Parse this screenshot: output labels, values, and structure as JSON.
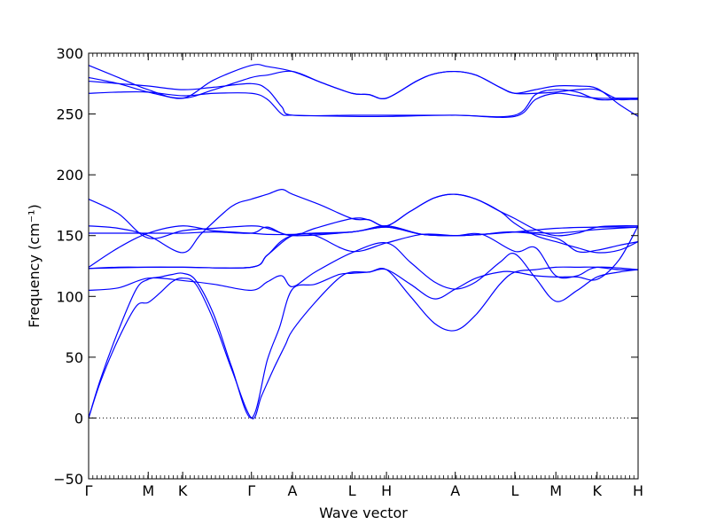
{
  "chart_data": {
    "type": "line",
    "xlabel": "Wave vector",
    "ylabel": "Frequency (cm⁻¹)",
    "ylim": [
      -50,
      300
    ],
    "y_ticks": [
      -50,
      0,
      50,
      100,
      150,
      200,
      250,
      300
    ],
    "x_ticks": [
      {
        "label": "Γ",
        "pos": 0
      },
      {
        "label": "M",
        "pos": 0.5
      },
      {
        "label": "K",
        "pos": 0.789
      },
      {
        "label": "Γ",
        "pos": 1.366
      },
      {
        "label": "A",
        "pos": 1.71
      },
      {
        "label": "L",
        "pos": 2.21
      },
      {
        "label": "H",
        "pos": 2.499
      },
      {
        "label": "A",
        "pos": 3.076
      },
      {
        "label": "L",
        "pos": 3.576
      },
      {
        "label": "M",
        "pos": 3.92
      },
      {
        "label": "K",
        "pos": 4.266
      },
      {
        "label": "H",
        "pos": 4.61
      }
    ],
    "xlim": [
      0,
      4.61
    ],
    "zero_line": true,
    "grid": false,
    "line_color": "#0000ff",
    "series": [
      {
        "points": [
          [
            0,
            0
          ],
          [
            0.1,
            30
          ],
          [
            0.25,
            65
          ],
          [
            0.4,
            92
          ],
          [
            0.5,
            95
          ],
          [
            0.6,
            103
          ],
          [
            0.7,
            112
          ],
          [
            0.789,
            115
          ],
          [
            0.9,
            110
          ],
          [
            1.05,
            80
          ],
          [
            1.2,
            40
          ],
          [
            1.366,
            0
          ],
          [
            1.45,
            18
          ],
          [
            1.55,
            40
          ],
          [
            1.65,
            60
          ],
          [
            1.71,
            72
          ],
          [
            1.9,
            95
          ],
          [
            2.1,
            115
          ],
          [
            2.21,
            120
          ],
          [
            2.35,
            120
          ],
          [
            2.499,
            122
          ],
          [
            2.7,
            100
          ],
          [
            2.9,
            78
          ],
          [
            3.076,
            72
          ],
          [
            3.25,
            85
          ],
          [
            3.45,
            110
          ],
          [
            3.576,
            120
          ],
          [
            3.75,
            122
          ],
          [
            3.92,
            124
          ],
          [
            4.1,
            124
          ],
          [
            4.266,
            124
          ],
          [
            4.45,
            122
          ],
          [
            4.61,
            122
          ]
        ]
      },
      {
        "points": [
          [
            0,
            0
          ],
          [
            0.1,
            32
          ],
          [
            0.25,
            72
          ],
          [
            0.4,
            106
          ],
          [
            0.5,
            114
          ],
          [
            0.6,
            116
          ],
          [
            0.7,
            118
          ],
          [
            0.789,
            119
          ],
          [
            0.9,
            113
          ],
          [
            1.05,
            85
          ],
          [
            1.2,
            42
          ],
          [
            1.366,
            0
          ],
          [
            1.5,
            48
          ],
          [
            1.6,
            74
          ],
          [
            1.71,
            106
          ],
          [
            1.9,
            110
          ],
          [
            2.1,
            118
          ],
          [
            2.21,
            119
          ],
          [
            2.35,
            120
          ],
          [
            2.499,
            122
          ],
          [
            2.7,
            110
          ],
          [
            2.9,
            98
          ],
          [
            3.076,
            106
          ],
          [
            3.25,
            115
          ],
          [
            3.45,
            120
          ],
          [
            3.576,
            120
          ],
          [
            3.75,
            117
          ],
          [
            3.92,
            116
          ],
          [
            4.1,
            116
          ],
          [
            4.266,
            114
          ],
          [
            4.45,
            130
          ],
          [
            4.61,
            158
          ]
        ]
      },
      {
        "points": [
          [
            0,
            105
          ],
          [
            0.25,
            107
          ],
          [
            0.5,
            115
          ],
          [
            0.789,
            113
          ],
          [
            1.05,
            110
          ],
          [
            1.366,
            105
          ],
          [
            1.5,
            112
          ],
          [
            1.62,
            117
          ],
          [
            1.71,
            108
          ],
          [
            1.9,
            120
          ],
          [
            2.21,
            136
          ],
          [
            2.499,
            144
          ],
          [
            2.7,
            128
          ],
          [
            2.9,
            112
          ],
          [
            3.076,
            106
          ],
          [
            3.25,
            112
          ],
          [
            3.45,
            128
          ],
          [
            3.576,
            135
          ],
          [
            3.75,
            115
          ],
          [
            3.92,
            96
          ],
          [
            4.1,
            105
          ],
          [
            4.266,
            116
          ],
          [
            4.45,
            120
          ],
          [
            4.61,
            122
          ]
        ]
      },
      {
        "points": [
          [
            0,
            123
          ],
          [
            0.5,
            124
          ],
          [
            0.789,
            124
          ],
          [
            1.366,
            124
          ],
          [
            1.5,
            134
          ],
          [
            1.71,
            150
          ],
          [
            1.9,
            150
          ],
          [
            2.21,
            137
          ],
          [
            2.499,
            144
          ],
          [
            2.8,
            151
          ],
          [
            3.076,
            150
          ],
          [
            3.3,
            151
          ],
          [
            3.576,
            137
          ],
          [
            3.75,
            140
          ],
          [
            3.92,
            117
          ],
          [
            4.1,
            117
          ],
          [
            4.266,
            124
          ],
          [
            4.61,
            122
          ]
        ]
      },
      {
        "points": [
          [
            0,
            123
          ],
          [
            0.25,
            124
          ],
          [
            0.5,
            124
          ],
          [
            0.789,
            124
          ],
          [
            1.366,
            124
          ],
          [
            1.5,
            134
          ],
          [
            1.71,
            150
          ],
          [
            2.21,
            153
          ],
          [
            2.499,
            157
          ],
          [
            2.8,
            151
          ],
          [
            3.076,
            150
          ],
          [
            3.3,
            151
          ],
          [
            3.576,
            153
          ],
          [
            3.92,
            156
          ],
          [
            4.266,
            157
          ],
          [
            4.61,
            157
          ]
        ]
      },
      {
        "points": [
          [
            0,
            124
          ],
          [
            0.25,
            140
          ],
          [
            0.5,
            152
          ],
          [
            0.789,
            158
          ],
          [
            1.05,
            154
          ],
          [
            1.366,
            152
          ],
          [
            1.5,
            151
          ],
          [
            1.71,
            151
          ],
          [
            2.21,
            153
          ],
          [
            2.499,
            158
          ],
          [
            2.8,
            151
          ],
          [
            3.076,
            150
          ],
          [
            3.3,
            151
          ],
          [
            3.576,
            153
          ],
          [
            3.92,
            148
          ],
          [
            4.1,
            137
          ],
          [
            4.266,
            138
          ],
          [
            4.45,
            142
          ],
          [
            4.61,
            145
          ]
        ]
      },
      {
        "points": [
          [
            0,
            152
          ],
          [
            0.5,
            152
          ],
          [
            0.789,
            152
          ],
          [
            1.05,
            153
          ],
          [
            1.366,
            152
          ],
          [
            1.5,
            157
          ],
          [
            1.71,
            150
          ],
          [
            2.21,
            153
          ],
          [
            2.499,
            157
          ],
          [
            2.8,
            151
          ],
          [
            3.076,
            150
          ],
          [
            3.3,
            151
          ],
          [
            3.576,
            153
          ],
          [
            3.92,
            152
          ],
          [
            4.266,
            155
          ],
          [
            4.61,
            157
          ]
        ]
      },
      {
        "points": [
          [
            0,
            158
          ],
          [
            0.25,
            156
          ],
          [
            0.5,
            150
          ],
          [
            0.789,
            136
          ],
          [
            0.95,
            152
          ],
          [
            1.2,
            174
          ],
          [
            1.366,
            180
          ],
          [
            1.5,
            184
          ],
          [
            1.62,
            188
          ],
          [
            1.71,
            184
          ],
          [
            1.95,
            175
          ],
          [
            2.21,
            164
          ],
          [
            2.35,
            163
          ],
          [
            2.499,
            158
          ],
          [
            2.7,
            170
          ],
          [
            2.9,
            181
          ],
          [
            3.076,
            184
          ],
          [
            3.25,
            180
          ],
          [
            3.45,
            170
          ],
          [
            3.576,
            164
          ],
          [
            3.75,
            155
          ],
          [
            3.92,
            150
          ],
          [
            4.1,
            152
          ],
          [
            4.266,
            157
          ],
          [
            4.45,
            158
          ],
          [
            4.61,
            158
          ]
        ]
      },
      {
        "points": [
          [
            0,
            180
          ],
          [
            0.25,
            168
          ],
          [
            0.5,
            148
          ],
          [
            0.789,
            154
          ],
          [
            1.05,
            156
          ],
          [
            1.366,
            158
          ],
          [
            1.5,
            156
          ],
          [
            1.71,
            150
          ],
          [
            1.9,
            156
          ],
          [
            2.21,
            164
          ],
          [
            2.35,
            163
          ],
          [
            2.499,
            158
          ],
          [
            2.7,
            170
          ],
          [
            2.9,
            181
          ],
          [
            3.076,
            184
          ],
          [
            3.25,
            180
          ],
          [
            3.45,
            170
          ],
          [
            3.576,
            160
          ],
          [
            3.75,
            150
          ],
          [
            3.92,
            145
          ],
          [
            4.1,
            140
          ],
          [
            4.266,
            136
          ],
          [
            4.45,
            138
          ],
          [
            4.61,
            145
          ]
        ]
      },
      {
        "points": [
          [
            0,
            267
          ],
          [
            0.25,
            268
          ],
          [
            0.5,
            268
          ],
          [
            0.789,
            265
          ],
          [
            1.05,
            267
          ],
          [
            1.366,
            267
          ],
          [
            1.5,
            262
          ],
          [
            1.62,
            250
          ],
          [
            1.71,
            249
          ],
          [
            2.21,
            248
          ],
          [
            2.499,
            248
          ],
          [
            3.076,
            249
          ],
          [
            3.576,
            248
          ],
          [
            3.75,
            262
          ],
          [
            3.92,
            267
          ],
          [
            4.1,
            265
          ],
          [
            4.266,
            263
          ],
          [
            4.45,
            263
          ],
          [
            4.61,
            263
          ]
        ]
      },
      {
        "points": [
          [
            0,
            277
          ],
          [
            0.25,
            275
          ],
          [
            0.5,
            273
          ],
          [
            0.789,
            270
          ],
          [
            1.05,
            272
          ],
          [
            1.366,
            275
          ],
          [
            1.5,
            270
          ],
          [
            1.62,
            256
          ],
          [
            1.71,
            249
          ],
          [
            2.21,
            249
          ],
          [
            2.499,
            249
          ],
          [
            3.076,
            249
          ],
          [
            3.576,
            249
          ],
          [
            3.75,
            266
          ],
          [
            3.92,
            270
          ],
          [
            4.1,
            268
          ],
          [
            4.266,
            262
          ],
          [
            4.45,
            262
          ],
          [
            4.61,
            262
          ]
        ]
      },
      {
        "points": [
          [
            0,
            280
          ],
          [
            0.25,
            275
          ],
          [
            0.5,
            268
          ],
          [
            0.789,
            263
          ],
          [
            1.05,
            270
          ],
          [
            1.366,
            280
          ],
          [
            1.5,
            282
          ],
          [
            1.71,
            285
          ],
          [
            1.95,
            276
          ],
          [
            2.21,
            267
          ],
          [
            2.35,
            266
          ],
          [
            2.499,
            263
          ],
          [
            2.75,
            277
          ],
          [
            2.9,
            283
          ],
          [
            3.076,
            285
          ],
          [
            3.25,
            282
          ],
          [
            3.45,
            272
          ],
          [
            3.576,
            267
          ],
          [
            3.75,
            267
          ],
          [
            3.92,
            268
          ],
          [
            4.1,
            270
          ],
          [
            4.266,
            270
          ],
          [
            4.45,
            262
          ],
          [
            4.61,
            263
          ]
        ]
      },
      {
        "points": [
          [
            0,
            290
          ],
          [
            0.25,
            280
          ],
          [
            0.5,
            270
          ],
          [
            0.789,
            263
          ],
          [
            1.05,
            278
          ],
          [
            1.366,
            290
          ],
          [
            1.5,
            289
          ],
          [
            1.71,
            285
          ],
          [
            1.95,
            276
          ],
          [
            2.21,
            267
          ],
          [
            2.35,
            266
          ],
          [
            2.499,
            263
          ],
          [
            2.75,
            277
          ],
          [
            2.9,
            283
          ],
          [
            3.076,
            285
          ],
          [
            3.25,
            282
          ],
          [
            3.45,
            272
          ],
          [
            3.576,
            267
          ],
          [
            3.75,
            270
          ],
          [
            3.92,
            273
          ],
          [
            4.1,
            273
          ],
          [
            4.266,
            271
          ],
          [
            4.45,
            258
          ],
          [
            4.61,
            248
          ]
        ]
      }
    ]
  }
}
